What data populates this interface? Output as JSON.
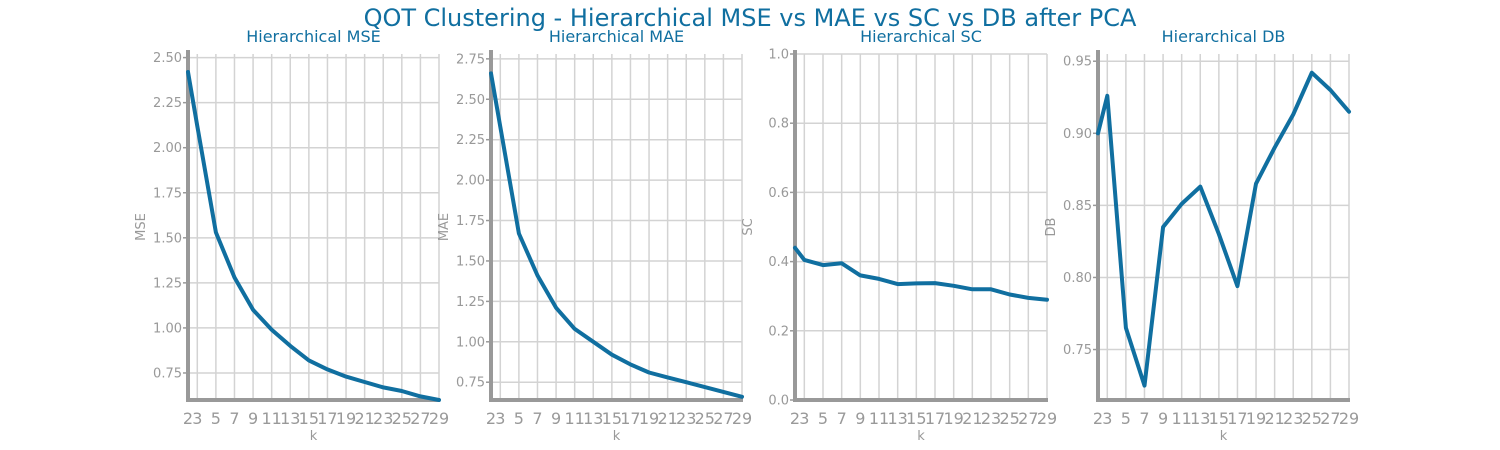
{
  "suptitle": "QOT Clustering - Hierarchical MSE vs MAE vs SC vs DB after PCA",
  "colors": {
    "line": "#106fa0",
    "title": "#106fa0",
    "axis": "#999999",
    "grid": "#d3d3d3",
    "tick_text": "#999999"
  },
  "chart_data": [
    {
      "type": "line",
      "title": "Hierarchical MSE",
      "xlabel": "k",
      "ylabel": "MSE",
      "x": [
        2,
        3,
        5,
        7,
        9,
        11,
        13,
        15,
        17,
        19,
        21,
        23,
        25,
        27,
        29
      ],
      "xticks": [
        "2",
        "3",
        "5",
        "7",
        "9",
        "11",
        "13",
        "15",
        "17",
        "19",
        "21",
        "23",
        "25",
        "27",
        "29"
      ],
      "yticks": [
        "0.75",
        "1.00",
        "1.25",
        "1.50",
        "1.75",
        "2.00",
        "2.25",
        "2.50"
      ],
      "ylim": [
        0.6,
        2.52
      ],
      "grid": true,
      "series": [
        {
          "values": [
            2.42,
            2.12,
            1.53,
            1.28,
            1.1,
            0.99,
            0.9,
            0.82,
            0.77,
            0.73,
            0.7,
            0.67,
            0.65,
            0.62,
            0.6
          ]
        }
      ]
    },
    {
      "type": "line",
      "title": "Hierarchical MAE",
      "xlabel": "k",
      "ylabel": "MAE",
      "x": [
        2,
        3,
        5,
        7,
        9,
        11,
        13,
        15,
        17,
        19,
        21,
        23,
        25,
        27,
        29
      ],
      "xticks": [
        "2",
        "3",
        "5",
        "7",
        "9",
        "11",
        "13",
        "15",
        "17",
        "19",
        "21",
        "23",
        "25",
        "27",
        "29"
      ],
      "yticks": [
        "0.75",
        "1.00",
        "1.25",
        "1.50",
        "1.75",
        "2.00",
        "2.25",
        "2.50",
        "2.75"
      ],
      "ylim": [
        0.64,
        2.78
      ],
      "grid": true,
      "series": [
        {
          "values": [
            2.66,
            2.33,
            1.67,
            1.41,
            1.21,
            1.08,
            1.0,
            0.92,
            0.86,
            0.81,
            0.78,
            0.75,
            0.72,
            0.69,
            0.66
          ]
        }
      ]
    },
    {
      "type": "line",
      "title": "Hierarchical SC",
      "xlabel": "k",
      "ylabel": "SC",
      "x": [
        2,
        3,
        5,
        7,
        9,
        11,
        13,
        15,
        17,
        19,
        21,
        23,
        25,
        27,
        29
      ],
      "xticks": [
        "2",
        "3",
        "5",
        "7",
        "9",
        "11",
        "13",
        "15",
        "17",
        "19",
        "21",
        "23",
        "25",
        "27",
        "29"
      ],
      "yticks": [
        "0.0",
        "0.2",
        "0.4",
        "0.6",
        "0.8",
        "1.0"
      ],
      "ylim": [
        0.0,
        1.0
      ],
      "grid": true,
      "series": [
        {
          "values": [
            0.44,
            0.405,
            0.39,
            0.395,
            0.36,
            0.35,
            0.335,
            0.337,
            0.338,
            0.33,
            0.32,
            0.32,
            0.305,
            0.295,
            0.29
          ]
        }
      ]
    },
    {
      "type": "line",
      "title": "Hierarchical DB",
      "xlabel": "k",
      "ylabel": "DB",
      "x": [
        2,
        3,
        5,
        7,
        9,
        11,
        13,
        15,
        17,
        19,
        21,
        23,
        25,
        27,
        29
      ],
      "xticks": [
        "2",
        "3",
        "5",
        "7",
        "9",
        "11",
        "13",
        "15",
        "17",
        "19",
        "21",
        "23",
        "25",
        "27",
        "29"
      ],
      "yticks": [
        "0.75",
        "0.80",
        "0.85",
        "0.90",
        "0.95"
      ],
      "ylim": [
        0.715,
        0.955
      ],
      "grid": true,
      "series": [
        {
          "values": [
            0.9,
            0.926,
            0.765,
            0.725,
            0.835,
            0.851,
            0.863,
            0.83,
            0.794,
            0.865,
            0.89,
            0.913,
            0.942,
            0.93,
            0.915
          ]
        }
      ]
    }
  ]
}
